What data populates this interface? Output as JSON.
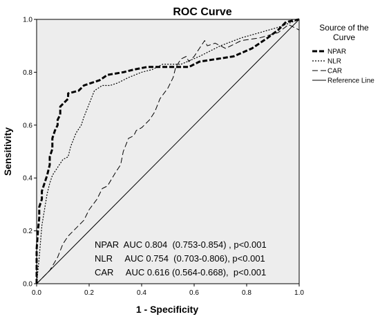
{
  "chart_data": {
    "type": "line",
    "title": "ROC Curve",
    "xlabel": "1 - Specificity",
    "ylabel": "Sensitivity",
    "xlim": [
      0,
      1
    ],
    "ylim": [
      0,
      1
    ],
    "x_ticks": [
      "0.0",
      "0.2",
      "0.4",
      "0.6",
      "0.8",
      "1.0"
    ],
    "y_ticks": [
      "0.0",
      "0.2",
      "0.4",
      "0.6",
      "0.8",
      "1.0"
    ],
    "grid": false,
    "plot_background": "#ededed",
    "legend": {
      "title_lines": [
        "Source of the",
        "Curve"
      ],
      "placement": "right"
    },
    "series": [
      {
        "name": "NPAR",
        "style": "heavy-dash",
        "color": "#000000",
        "x": [
          0,
          0,
          0.005,
          0.01,
          0.01,
          0.02,
          0.02,
          0.03,
          0.04,
          0.05,
          0.05,
          0.06,
          0.06,
          0.07,
          0.08,
          0.08,
          0.09,
          0.09,
          0.11,
          0.12,
          0.12,
          0.16,
          0.18,
          0.21,
          0.24,
          0.27,
          0.33,
          0.37,
          0.42,
          0.58,
          0.62,
          0.75,
          0.82,
          0.88,
          0.92,
          0.95,
          1.0
        ],
        "y": [
          0,
          0.13,
          0.2,
          0.25,
          0.29,
          0.32,
          0.35,
          0.38,
          0.41,
          0.45,
          0.48,
          0.51,
          0.55,
          0.58,
          0.6,
          0.62,
          0.64,
          0.67,
          0.69,
          0.7,
          0.72,
          0.73,
          0.75,
          0.76,
          0.77,
          0.79,
          0.8,
          0.81,
          0.82,
          0.82,
          0.84,
          0.86,
          0.89,
          0.93,
          0.96,
          0.99,
          1.0
        ]
      },
      {
        "name": "NLR",
        "style": "dotted",
        "color": "#000000",
        "x": [
          0,
          0.01,
          0.02,
          0.03,
          0.04,
          0.05,
          0.06,
          0.08,
          0.1,
          0.12,
          0.13,
          0.15,
          0.17,
          0.18,
          0.2,
          0.22,
          0.25,
          0.28,
          0.31,
          0.35,
          0.4,
          0.44,
          0.48,
          0.55,
          0.62,
          0.7,
          0.78,
          0.85,
          0.92,
          1.0
        ],
        "y": [
          0,
          0.1,
          0.22,
          0.28,
          0.34,
          0.38,
          0.41,
          0.44,
          0.47,
          0.48,
          0.52,
          0.57,
          0.6,
          0.63,
          0.68,
          0.73,
          0.75,
          0.75,
          0.76,
          0.78,
          0.8,
          0.81,
          0.83,
          0.83,
          0.86,
          0.9,
          0.93,
          0.95,
          0.97,
          1.0
        ]
      },
      {
        "name": "CAR",
        "style": "dashed",
        "color": "#000000",
        "x": [
          0,
          0.02,
          0.05,
          0.08,
          0.1,
          0.12,
          0.15,
          0.18,
          0.2,
          0.23,
          0.25,
          0.27,
          0.3,
          0.32,
          0.33,
          0.35,
          0.37,
          0.38,
          0.4,
          0.43,
          0.45,
          0.47,
          0.5,
          0.52,
          0.53,
          0.55,
          0.57,
          0.58,
          0.6,
          0.62,
          0.64,
          0.65,
          0.68,
          0.72,
          0.78,
          0.85,
          0.92,
          0.96,
          1.0
        ],
        "y": [
          0,
          0.02,
          0.05,
          0.1,
          0.15,
          0.18,
          0.21,
          0.24,
          0.28,
          0.32,
          0.36,
          0.37,
          0.42,
          0.45,
          0.5,
          0.55,
          0.56,
          0.58,
          0.59,
          0.62,
          0.65,
          0.7,
          0.74,
          0.78,
          0.82,
          0.85,
          0.86,
          0.84,
          0.86,
          0.89,
          0.92,
          0.9,
          0.91,
          0.89,
          0.92,
          0.93,
          0.95,
          0.98,
          0.96
        ]
      },
      {
        "name": "Reference Line",
        "style": "solid",
        "color": "#000000",
        "x": [
          0,
          1
        ],
        "y": [
          0,
          1
        ]
      }
    ],
    "annotations": [
      "NPAR  AUC 0.804  (0.753-0.854) , p<0.001",
      "NLR     AUC 0.754  (0.703-0.806), p<0.001",
      "CAR     AUC 0.616 (0.564-0.668),  p<0.001"
    ]
  }
}
